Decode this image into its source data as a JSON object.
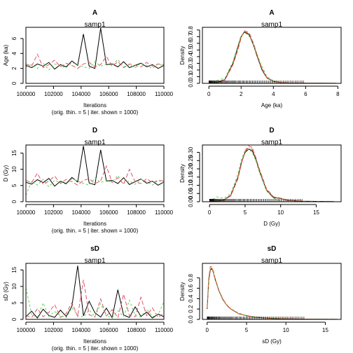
{
  "chart_data": [
    {
      "type": "line",
      "title": "A",
      "subtitle": "samp1",
      "xlabel": "Iterations",
      "xlabel2": "(orig. thin. = 5 | iter. shown = 1000)",
      "ylabel": "Age (ka)",
      "xlim": [
        100000,
        110000
      ],
      "ylim": [
        0,
        7.5
      ],
      "xticks": [
        100000,
        102000,
        104000,
        106000,
        108000,
        110000
      ],
      "yticks": [
        0,
        2,
        4,
        6
      ],
      "series": [
        {
          "color": "#000000",
          "values": [
            2.4,
            2.1,
            2.6,
            2.3,
            2.8,
            1.9,
            2.5,
            2.2,
            3.0,
            2.4,
            6.6,
            2.3,
            2.0,
            7.4,
            2.5,
            2.6,
            2.2,
            2.9,
            2.1,
            2.4,
            2.7,
            2.2,
            2.5,
            2.0,
            2.4
          ]
        },
        {
          "color": "#DF536B",
          "values": [
            2.6,
            2.3,
            3.9,
            2.1,
            2.5,
            3.1,
            2.2,
            2.7,
            2.4,
            2.0,
            2.6,
            2.8,
            2.2,
            2.5,
            3.6,
            2.3,
            2.9,
            2.1,
            2.6,
            2.4,
            2.2,
            2.8,
            2.3,
            2.6,
            2.5
          ]
        },
        {
          "color": "#61D04F",
          "values": [
            2.2,
            2.5,
            2.0,
            2.7,
            1.8,
            2.6,
            2.3,
            2.1,
            2.8,
            2.5,
            2.2,
            2.0,
            2.9,
            2.3,
            2.6,
            2.4,
            3.2,
            2.2,
            2.5,
            2.1,
            2.7,
            2.4,
            2.0,
            2.6,
            2.3
          ]
        }
      ]
    },
    {
      "type": "line",
      "title": "A",
      "subtitle": "samp1",
      "xlabel": "Age (ka)",
      "ylabel": "Density",
      "xlim": [
        -0.4,
        8.2
      ],
      "ylim": [
        0,
        0.84
      ],
      "xticks": [
        0,
        2,
        4,
        6,
        8
      ],
      "yticks": [
        0.0,
        0.1,
        0.2,
        0.3,
        0.4,
        0.5,
        0.6,
        0.7,
        0.8
      ],
      "series": [
        {
          "color": "#000000",
          "x": [
            0,
            0.5,
            1.0,
            1.5,
            1.8,
            2.0,
            2.2,
            2.5,
            2.8,
            3.0,
            3.3,
            3.6,
            4.0,
            4.5,
            5.0,
            6.0,
            7.0,
            7.9
          ],
          "y": [
            0.0,
            0.01,
            0.06,
            0.3,
            0.55,
            0.7,
            0.77,
            0.73,
            0.55,
            0.4,
            0.2,
            0.08,
            0.03,
            0.01,
            0.005,
            0.003,
            0.002,
            0.001
          ]
        },
        {
          "color": "#DF536B",
          "x": [
            0,
            0.5,
            1.0,
            1.5,
            1.8,
            2.0,
            2.2,
            2.5,
            2.8,
            3.0,
            3.3,
            3.6,
            4.0,
            4.5,
            5.0,
            6.0
          ],
          "y": [
            0.0,
            0.01,
            0.05,
            0.28,
            0.5,
            0.68,
            0.79,
            0.76,
            0.58,
            0.42,
            0.22,
            0.09,
            0.03,
            0.01,
            0.004,
            0.002
          ]
        },
        {
          "color": "#61D04F",
          "x": [
            0,
            0.3,
            0.6,
            1.0,
            1.5,
            1.8,
            2.0,
            2.3,
            2.6,
            2.9,
            3.2,
            3.6,
            4.0,
            4.5
          ],
          "y": [
            0.0,
            0.03,
            0.05,
            0.08,
            0.33,
            0.57,
            0.72,
            0.75,
            0.68,
            0.5,
            0.3,
            0.1,
            0.04,
            0.01
          ]
        },
        {
          "color": "#D2691E",
          "x": [
            0,
            0.5,
            1.0,
            1.5,
            1.8,
            2.0,
            2.2,
            2.5,
            2.8,
            3.0,
            3.3,
            3.6,
            4.0,
            4.5,
            5.0,
            6.0,
            7.0,
            7.9
          ],
          "y": [
            0.0,
            0.01,
            0.06,
            0.29,
            0.53,
            0.7,
            0.78,
            0.74,
            0.56,
            0.41,
            0.21,
            0.08,
            0.03,
            0.01,
            0.005,
            0.003,
            0.002,
            0.001
          ]
        }
      ]
    },
    {
      "type": "line",
      "title": "D",
      "subtitle": "samp1",
      "xlabel": "Iterations",
      "xlabel2": "(orig. thin. = 5 | iter. shown = 1000)",
      "ylabel": "D (Gy)",
      "xlim": [
        100000,
        110000
      ],
      "ylim": [
        0,
        17.5
      ],
      "xticks": [
        100000,
        102000,
        104000,
        106000,
        108000,
        110000
      ],
      "yticks": [
        0,
        5,
        10,
        15
      ],
      "series": [
        {
          "color": "#000000",
          "values": [
            6.0,
            5.4,
            6.8,
            5.9,
            7.2,
            4.8,
            6.3,
            5.6,
            7.5,
            6.1,
            17.2,
            5.8,
            5.2,
            16.0,
            6.4,
            6.6,
            5.6,
            7.4,
            5.3,
            6.2,
            7.0,
            5.7,
            6.3,
            5.1,
            6.1
          ]
        },
        {
          "color": "#DF536B",
          "values": [
            6.6,
            5.9,
            8.8,
            5.4,
            6.4,
            7.9,
            5.6,
            6.9,
            6.2,
            5.1,
            6.6,
            7.1,
            5.6,
            6.4,
            11.0,
            5.9,
            7.4,
            5.4,
            10.0,
            6.1,
            5.6,
            7.1,
            5.9,
            6.6,
            6.4
          ]
        },
        {
          "color": "#61D04F",
          "values": [
            2.0,
            6.4,
            5.1,
            6.9,
            4.6,
            6.6,
            5.9,
            5.4,
            7.1,
            6.4,
            5.6,
            5.1,
            7.4,
            5.9,
            6.6,
            6.1,
            8.1,
            5.6,
            6.4,
            5.4,
            6.9,
            6.1,
            5.1,
            6.6,
            5.9
          ]
        }
      ]
    },
    {
      "type": "line",
      "title": "D",
      "subtitle": "samp1",
      "xlabel": "D (Gy)",
      "ylabel": "Density",
      "xlim": [
        -1.0,
        18.5
      ],
      "ylim": [
        0,
        0.345
      ],
      "xticks": [
        0,
        5,
        10,
        15
      ],
      "yticks": [
        0.0,
        0.05,
        0.1,
        0.15,
        0.2,
        0.25,
        0.3
      ],
      "series": [
        {
          "color": "#000000",
          "x": [
            0,
            1,
            2,
            3,
            4,
            4.5,
            5.0,
            5.5,
            6.0,
            6.5,
            7.0,
            8.0,
            9.0,
            10.0,
            11.0,
            13.0,
            15.0,
            17.5
          ],
          "y": [
            0.0,
            0.004,
            0.01,
            0.04,
            0.15,
            0.24,
            0.3,
            0.32,
            0.31,
            0.26,
            0.19,
            0.07,
            0.025,
            0.02,
            0.008,
            0.003,
            0.002,
            0.001
          ]
        },
        {
          "color": "#DF536B",
          "x": [
            0,
            1,
            2,
            3,
            4,
            4.5,
            5.0,
            5.5,
            6.0,
            6.5,
            7.0,
            8.0,
            9.0,
            10.0,
            11.0,
            13.0
          ],
          "y": [
            0.0,
            0.004,
            0.01,
            0.035,
            0.14,
            0.23,
            0.31,
            0.34,
            0.33,
            0.27,
            0.2,
            0.08,
            0.03,
            0.022,
            0.009,
            0.003
          ]
        },
        {
          "color": "#61D04F",
          "x": [
            0,
            0.5,
            1,
            2,
            3,
            4,
            4.5,
            5.0,
            5.5,
            6.0,
            6.5,
            7.0,
            8.0,
            9.0,
            10.0
          ],
          "y": [
            0.0,
            0.015,
            0.03,
            0.02,
            0.05,
            0.17,
            0.26,
            0.31,
            0.32,
            0.3,
            0.25,
            0.18,
            0.07,
            0.02,
            0.005
          ]
        },
        {
          "color": "#D2691E",
          "x": [
            0,
            1,
            2,
            3,
            4,
            4.5,
            5.0,
            5.5,
            6.0,
            6.5,
            7.0,
            8.0,
            9.0,
            10.0,
            11.0,
            13.0,
            15.0,
            17.5
          ],
          "y": [
            0.0,
            0.004,
            0.01,
            0.038,
            0.15,
            0.24,
            0.305,
            0.33,
            0.32,
            0.265,
            0.195,
            0.075,
            0.028,
            0.02,
            0.008,
            0.003,
            0.002,
            0.001
          ]
        }
      ]
    },
    {
      "type": "line",
      "title": "sD",
      "subtitle": "samp1",
      "xlabel": "Iterations",
      "xlabel2": "(orig. thin. = 5 | iter. shown = 1000)",
      "ylabel": "sD (Gy)",
      "xlim": [
        100000,
        110000
      ],
      "ylim": [
        0,
        17
      ],
      "xticks": [
        100000,
        102000,
        104000,
        106000,
        108000,
        110000
      ],
      "yticks": [
        0,
        5,
        10,
        15
      ],
      "series": [
        {
          "color": "#000000",
          "values": [
            0.8,
            2.5,
            0.4,
            3.1,
            1.2,
            0.6,
            2.8,
            0.9,
            4.0,
            16.3,
            1.1,
            5.5,
            2.0,
            0.7,
            3.4,
            0.5,
            9.0,
            1.3,
            0.6,
            3.8,
            0.9,
            2.2,
            0.4,
            1.6,
            0.8
          ]
        },
        {
          "color": "#DF536B",
          "values": [
            1.2,
            0.5,
            3.3,
            0.8,
            2.1,
            4.5,
            0.6,
            1.8,
            5.1,
            0.9,
            12.0,
            1.4,
            0.7,
            6.2,
            1.0,
            3.0,
            0.5,
            7.6,
            1.2,
            0.8,
            6.7,
            1.1,
            3.5,
            0.6,
            1.9
          ]
        },
        {
          "color": "#61D04F",
          "values": [
            9.5,
            1.5,
            0.6,
            5.0,
            0.9,
            2.4,
            1.1,
            0.5,
            3.6,
            1.3,
            0.7,
            2.9,
            0.8,
            4.8,
            1.0,
            0.6,
            2.6,
            0.9,
            5.8,
            1.2,
            0.7,
            3.1,
            0.8,
            1.4,
            5.3
          ]
        }
      ]
    },
    {
      "type": "line",
      "title": "sD",
      "subtitle": "samp1",
      "xlabel": "sD (Gy)",
      "ylabel": "Density",
      "xlim": [
        -0.6,
        17.0
      ],
      "ylim": [
        0,
        1.08
      ],
      "xticks": [
        0,
        5,
        10,
        15
      ],
      "yticks": [
        0.0,
        0.2,
        0.4,
        0.6,
        0.8
      ],
      "series": [
        {
          "color": "#000000",
          "x": [
            0,
            0.2,
            0.4,
            0.6,
            0.8,
            1.0,
            1.5,
            2.0,
            2.5,
            3.0,
            4.0,
            5.0,
            6.0,
            8.0,
            10.0,
            13.0,
            16.5
          ],
          "y": [
            0.2,
            0.75,
            0.95,
            0.98,
            0.9,
            0.78,
            0.55,
            0.38,
            0.27,
            0.2,
            0.11,
            0.07,
            0.045,
            0.02,
            0.01,
            0.004,
            0.001
          ]
        },
        {
          "color": "#DF536B",
          "x": [
            0,
            0.2,
            0.4,
            0.6,
            0.8,
            1.0,
            1.5,
            2.0,
            2.5,
            3.0,
            4.0,
            5.0,
            6.0,
            8.0,
            10.0,
            13.0
          ],
          "y": [
            0.25,
            0.8,
            1.02,
            1.01,
            0.92,
            0.8,
            0.56,
            0.39,
            0.28,
            0.2,
            0.11,
            0.07,
            0.045,
            0.02,
            0.01,
            0.004
          ]
        },
        {
          "color": "#61D04F",
          "x": [
            0,
            0.2,
            0.4,
            0.6,
            0.8,
            1.0,
            1.5,
            2.0,
            2.5,
            3.0,
            4.0,
            5.0,
            6.0,
            8.0,
            10.0
          ],
          "y": [
            0.22,
            0.78,
            0.97,
            0.99,
            0.9,
            0.77,
            0.54,
            0.37,
            0.27,
            0.21,
            0.12,
            0.075,
            0.05,
            0.02,
            0.01
          ]
        },
        {
          "color": "#D2691E",
          "x": [
            0,
            0.2,
            0.4,
            0.6,
            0.8,
            1.0,
            1.5,
            2.0,
            2.5,
            3.0,
            4.0,
            5.0,
            6.0,
            8.0,
            10.0,
            13.0,
            16.5
          ],
          "y": [
            0.22,
            0.77,
            0.97,
            0.99,
            0.91,
            0.79,
            0.55,
            0.38,
            0.27,
            0.2,
            0.11,
            0.07,
            0.045,
            0.02,
            0.01,
            0.004,
            0.001
          ]
        }
      ]
    }
  ]
}
